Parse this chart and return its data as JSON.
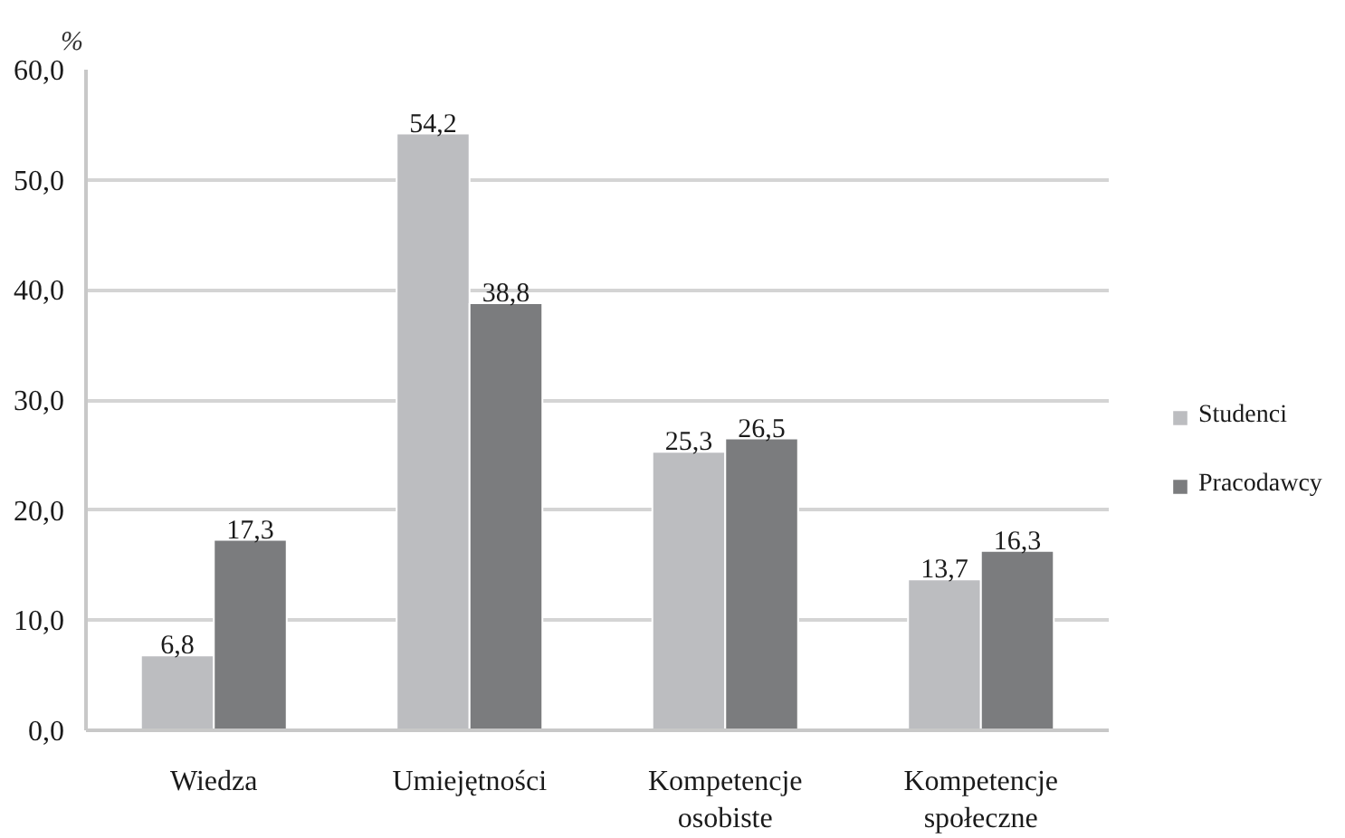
{
  "chart_data": {
    "type": "bar",
    "ylabel": "%",
    "categories": [
      "Wiedza",
      "Umiejętności",
      "Kompetencje osobiste",
      "Kompetencje społeczne"
    ],
    "series": [
      {
        "name": "Studenci",
        "color": "#bcbdc0",
        "values": [
          6.8,
          54.2,
          25.3,
          13.7
        ],
        "value_labels": [
          "6,8",
          "54,2",
          "25,3",
          "13,7"
        ]
      },
      {
        "name": "Pracodawcy",
        "color": "#7b7c7e",
        "values": [
          17.3,
          38.8,
          26.5,
          16.3
        ],
        "value_labels": [
          "17,3",
          "38,8",
          "26,5",
          "16,3"
        ]
      }
    ],
    "ylim": [
      0,
      60
    ],
    "yticks": [
      {
        "value": 0,
        "label": "0,0"
      },
      {
        "value": 10,
        "label": "10,0"
      },
      {
        "value": 20,
        "label": "20,0"
      },
      {
        "value": 30,
        "label": "30,0"
      },
      {
        "value": 40,
        "label": "40,0"
      },
      {
        "value": 50,
        "label": "50,0"
      },
      {
        "value": 60,
        "label": "60,0"
      }
    ],
    "grid": "y",
    "legend": "right"
  }
}
